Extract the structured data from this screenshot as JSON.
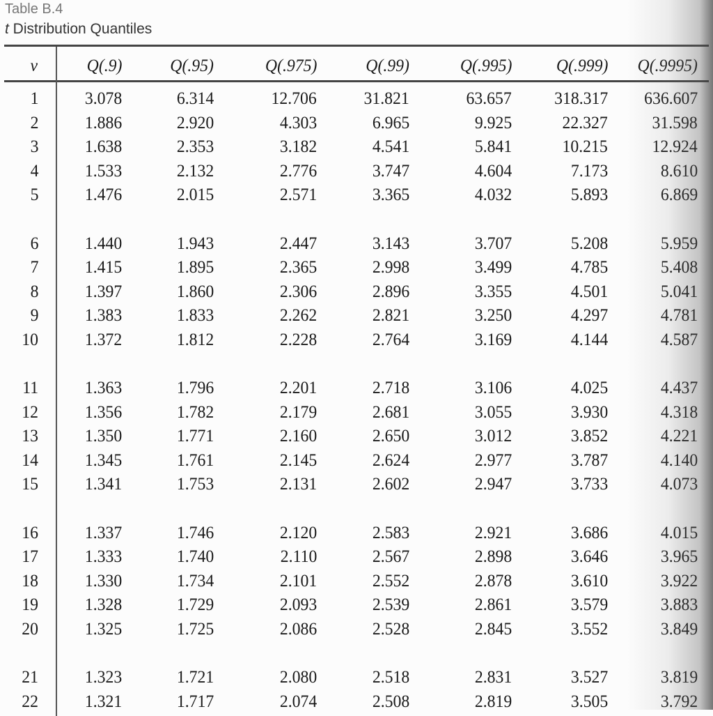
{
  "table_label": "Table B.4",
  "table_title_italic": "t",
  "table_title_rest": " Distribution Quantiles",
  "headers": [
    "ν",
    "Q(.9)",
    "Q(.95)",
    "Q(.975)",
    "Q(.99)",
    "Q(.995)",
    "Q(.999)",
    "Q(.9995)"
  ],
  "rows": [
    [
      "1",
      "3.078",
      "6.314",
      "12.706",
      "31.821",
      "63.657",
      "318.317",
      "636.607"
    ],
    [
      "2",
      "1.886",
      "2.920",
      "4.303",
      "6.965",
      "9.925",
      "22.327",
      "31.598"
    ],
    [
      "3",
      "1.638",
      "2.353",
      "3.182",
      "4.541",
      "5.841",
      "10.215",
      "12.924"
    ],
    [
      "4",
      "1.533",
      "2.132",
      "2.776",
      "3.747",
      "4.604",
      "7.173",
      "8.610"
    ],
    [
      "5",
      "1.476",
      "2.015",
      "2.571",
      "3.365",
      "4.032",
      "5.893",
      "6.869"
    ],
    [
      "6",
      "1.440",
      "1.943",
      "2.447",
      "3.143",
      "3.707",
      "5.208",
      "5.959"
    ],
    [
      "7",
      "1.415",
      "1.895",
      "2.365",
      "2.998",
      "3.499",
      "4.785",
      "5.408"
    ],
    [
      "8",
      "1.397",
      "1.860",
      "2.306",
      "2.896",
      "3.355",
      "4.501",
      "5.041"
    ],
    [
      "9",
      "1.383",
      "1.833",
      "2.262",
      "2.821",
      "3.250",
      "4.297",
      "4.781"
    ],
    [
      "10",
      "1.372",
      "1.812",
      "2.228",
      "2.764",
      "3.169",
      "4.144",
      "4.587"
    ],
    [
      "11",
      "1.363",
      "1.796",
      "2.201",
      "2.718",
      "3.106",
      "4.025",
      "4.437"
    ],
    [
      "12",
      "1.356",
      "1.782",
      "2.179",
      "2.681",
      "3.055",
      "3.930",
      "4.318"
    ],
    [
      "13",
      "1.350",
      "1.771",
      "2.160",
      "2.650",
      "3.012",
      "3.852",
      "4.221"
    ],
    [
      "14",
      "1.345",
      "1.761",
      "2.145",
      "2.624",
      "2.977",
      "3.787",
      "4.140"
    ],
    [
      "15",
      "1.341",
      "1.753",
      "2.131",
      "2.602",
      "2.947",
      "3.733",
      "4.073"
    ],
    [
      "16",
      "1.337",
      "1.746",
      "2.120",
      "2.583",
      "2.921",
      "3.686",
      "4.015"
    ],
    [
      "17",
      "1.333",
      "1.740",
      "2.110",
      "2.567",
      "2.898",
      "3.646",
      "3.965"
    ],
    [
      "18",
      "1.330",
      "1.734",
      "2.101",
      "2.552",
      "2.878",
      "3.610",
      "3.922"
    ],
    [
      "19",
      "1.328",
      "1.729",
      "2.093",
      "2.539",
      "2.861",
      "3.579",
      "3.883"
    ],
    [
      "20",
      "1.325",
      "1.725",
      "2.086",
      "2.528",
      "2.845",
      "3.552",
      "3.849"
    ],
    [
      "21",
      "1.323",
      "1.721",
      "2.080",
      "2.518",
      "2.831",
      "3.527",
      "3.819"
    ],
    [
      "22",
      "1.321",
      "1.717",
      "2.074",
      "2.508",
      "2.819",
      "3.505",
      "3.792"
    ]
  ]
}
